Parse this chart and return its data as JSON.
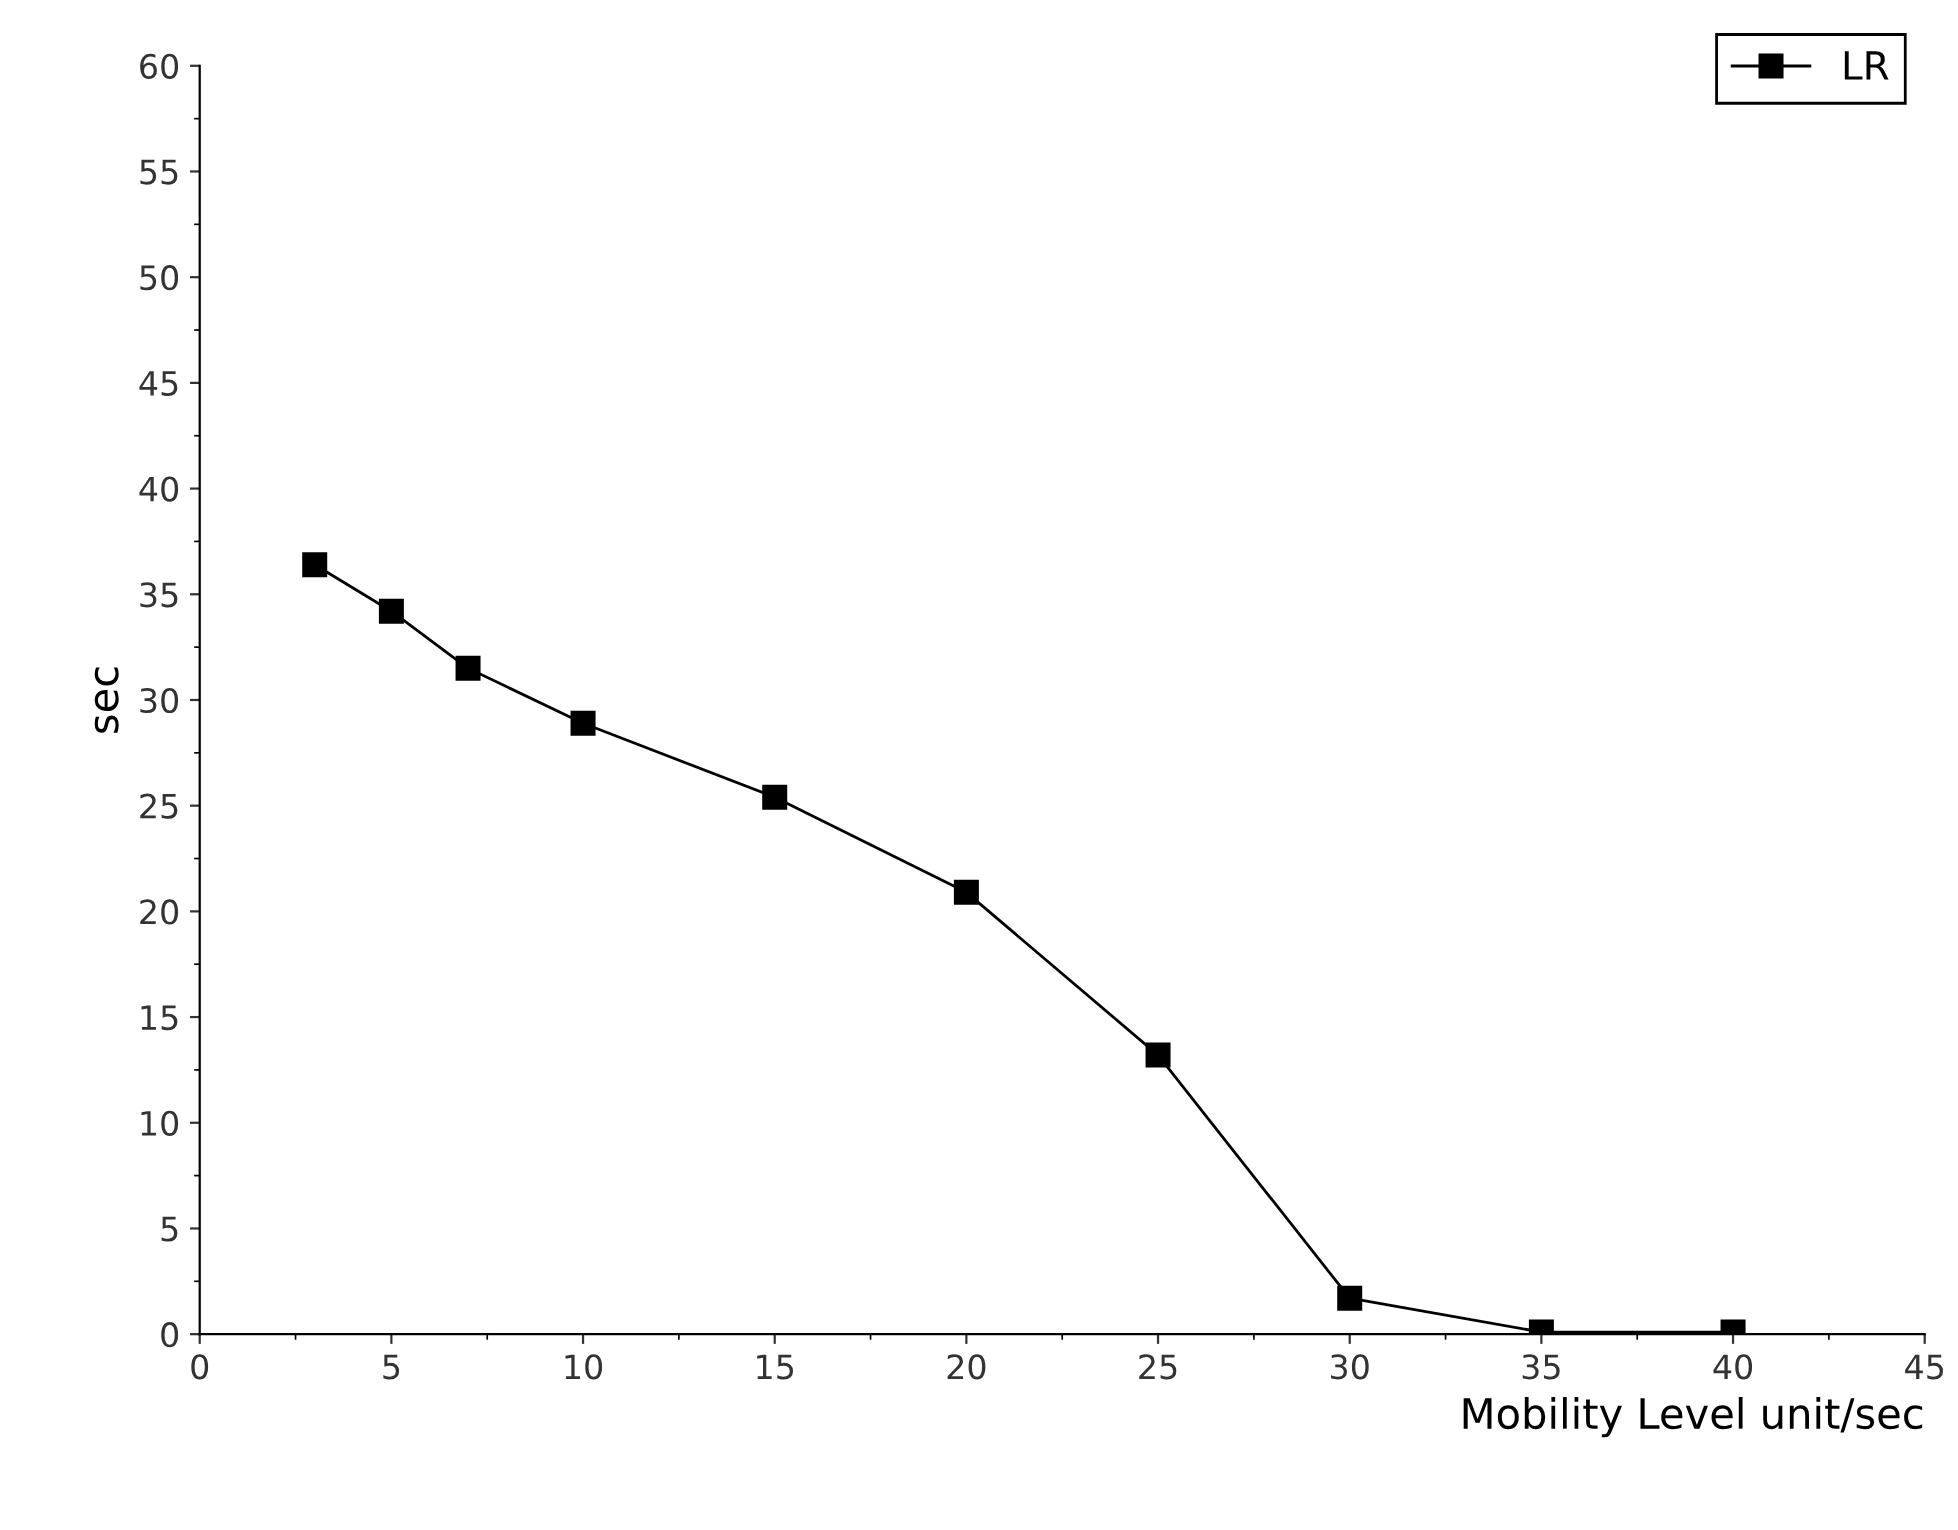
{
  "chart_data": {
    "type": "line",
    "xlabel": "Mobility Level unit/sec",
    "ylabel": "sec",
    "x": [
      3,
      5,
      7,
      10,
      15,
      20,
      25,
      30,
      35,
      40
    ],
    "series": [
      {
        "name": "LR",
        "color": "#000000",
        "values": [
          36.4,
          34.2,
          31.5,
          28.9,
          25.4,
          20.9,
          13.2,
          1.7,
          0.1,
          0.1
        ]
      }
    ],
    "xlim": [
      0,
      45
    ],
    "xticks": [
      0,
      5,
      10,
      15,
      20,
      25,
      30,
      35,
      40,
      45
    ],
    "ylim": [
      0,
      60
    ],
    "yticks": [
      0,
      5,
      10,
      15,
      20,
      25,
      30,
      35,
      40,
      45,
      50,
      55,
      60
    ],
    "marker": "square",
    "line_style": "solid",
    "legend": "top right",
    "grid": false
  }
}
